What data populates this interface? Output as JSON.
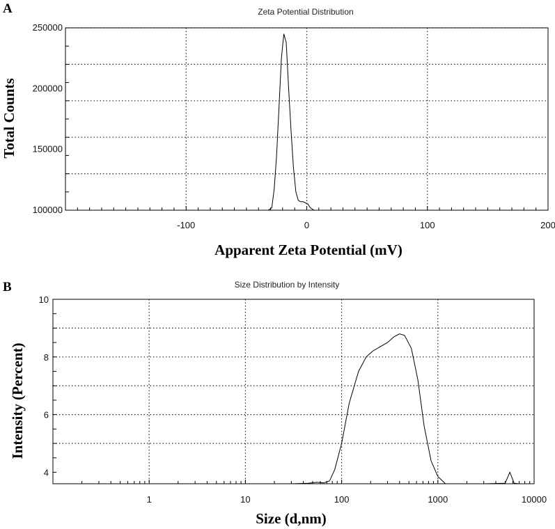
{
  "chart_data": [
    {
      "panel": "A",
      "type": "line",
      "title": "Zeta Potential Distribution",
      "xlabel": "Apparent Zeta Potential (mV)",
      "ylabel": "Total Counts",
      "xlim": [
        -200,
        200
      ],
      "ylim": [
        100000,
        250000
      ],
      "xscale": "linear",
      "x_ticks": [
        -100,
        0,
        100,
        200
      ],
      "y_ticks": [
        100000,
        150000,
        200000,
        250000
      ],
      "grid": true,
      "series": [
        {
          "x": [
            -147,
            -40,
            -32,
            -29,
            -27,
            -25,
            -23,
            -21,
            -19,
            -17,
            -15,
            -13,
            -11,
            -9,
            -7,
            -5,
            -3,
            -1,
            1,
            3,
            6,
            20,
            150
          ],
          "y": [
            100000,
            100000,
            100000,
            102000,
            117000,
            145000,
            185000,
            225000,
            245000,
            238000,
            200000,
            165000,
            135000,
            115000,
            108000,
            107000,
            107000,
            106000,
            105000,
            102000,
            100000,
            100000,
            100000
          ]
        }
      ]
    },
    {
      "panel": "B",
      "type": "line",
      "title": "Size Distribution by Intensity",
      "xlabel": "Size (d,nm)",
      "ylabel": "Intensity (Percent)",
      "xlim": [
        0.1,
        10000
      ],
      "ylim": [
        3.6,
        10
      ],
      "xscale": "log",
      "x_ticks": [
        1,
        10,
        100,
        1000,
        10000
      ],
      "y_ticks": [
        4,
        6,
        8,
        10
      ],
      "grid": true,
      "series": [
        {
          "x": [
            0.4,
            10,
            30,
            45,
            55,
            65,
            75,
            85,
            100,
            120,
            150,
            180,
            210,
            250,
            300,
            350,
            400,
            450,
            530,
            620,
            720,
            850,
            1000,
            1200,
            3000,
            5000,
            5600,
            6200,
            7000,
            10000
          ],
          "y": [
            3.6,
            3.6,
            3.6,
            3.62,
            3.65,
            3.63,
            3.7,
            4.1,
            5.0,
            6.4,
            7.5,
            8.0,
            8.2,
            8.35,
            8.5,
            8.7,
            8.8,
            8.75,
            8.3,
            7.2,
            5.6,
            4.4,
            3.85,
            3.6,
            3.6,
            3.62,
            4.0,
            3.62,
            3.6,
            3.6
          ]
        }
      ]
    }
  ]
}
